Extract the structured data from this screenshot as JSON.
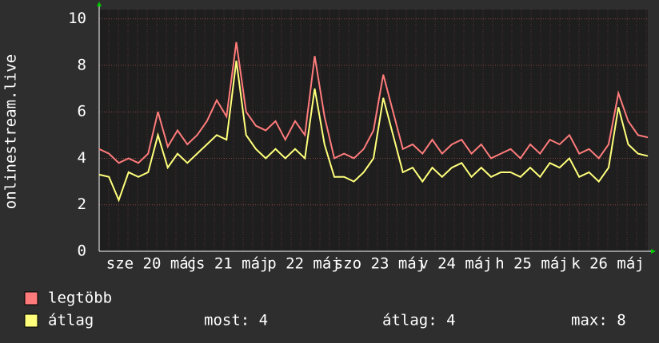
{
  "chart_data": {
    "type": "line",
    "y_label": "onlinestream.live",
    "ylim": [
      0,
      10.4
    ],
    "yticks": [
      0,
      2,
      4,
      6,
      8,
      10
    ],
    "grid": true,
    "x_labels": [
      "sze 20 máj",
      "cs 21 máj",
      "p 22 máj",
      "szo 23 máj",
      "v 24 máj",
      "h 25 máj",
      "k 26 máj"
    ],
    "series": [
      {
        "name": "legtöbb",
        "color": "#ff7b7b",
        "values": [
          4.4,
          4.2,
          3.8,
          4.0,
          3.8,
          4.2,
          6.0,
          4.5,
          5.2,
          4.6,
          5.0,
          5.6,
          6.5,
          5.8,
          9.0,
          6.0,
          5.4,
          5.2,
          5.6,
          4.8,
          5.6,
          5.0,
          8.4,
          5.8,
          4.0,
          4.2,
          4.0,
          4.4,
          5.2,
          7.6,
          6.0,
          4.4,
          4.6,
          4.2,
          4.8,
          4.2,
          4.6,
          4.8,
          4.2,
          4.6,
          4.0,
          4.2,
          4.4,
          4.0,
          4.6,
          4.2,
          4.8,
          4.6,
          5.0,
          4.2,
          4.4,
          4.0,
          4.6,
          6.8,
          5.6,
          5.0,
          4.9
        ]
      },
      {
        "name": "átlag",
        "color": "#ffff7b",
        "values": [
          3.3,
          3.2,
          2.2,
          3.4,
          3.2,
          3.4,
          5.0,
          3.6,
          4.2,
          3.8,
          4.2,
          4.6,
          5.0,
          4.8,
          8.2,
          5.0,
          4.4,
          4.0,
          4.4,
          4.0,
          4.4,
          4.0,
          7.0,
          4.6,
          3.2,
          3.2,
          3.0,
          3.4,
          4.0,
          6.6,
          5.0,
          3.4,
          3.6,
          3.0,
          3.6,
          3.2,
          3.6,
          3.8,
          3.2,
          3.6,
          3.2,
          3.4,
          3.4,
          3.2,
          3.6,
          3.2,
          3.8,
          3.6,
          4.0,
          3.2,
          3.4,
          3.0,
          3.6,
          6.2,
          4.6,
          4.2,
          4.1
        ]
      }
    ],
    "stats": [
      "most: 4",
      "átlag: 4",
      "max: 8"
    ]
  }
}
